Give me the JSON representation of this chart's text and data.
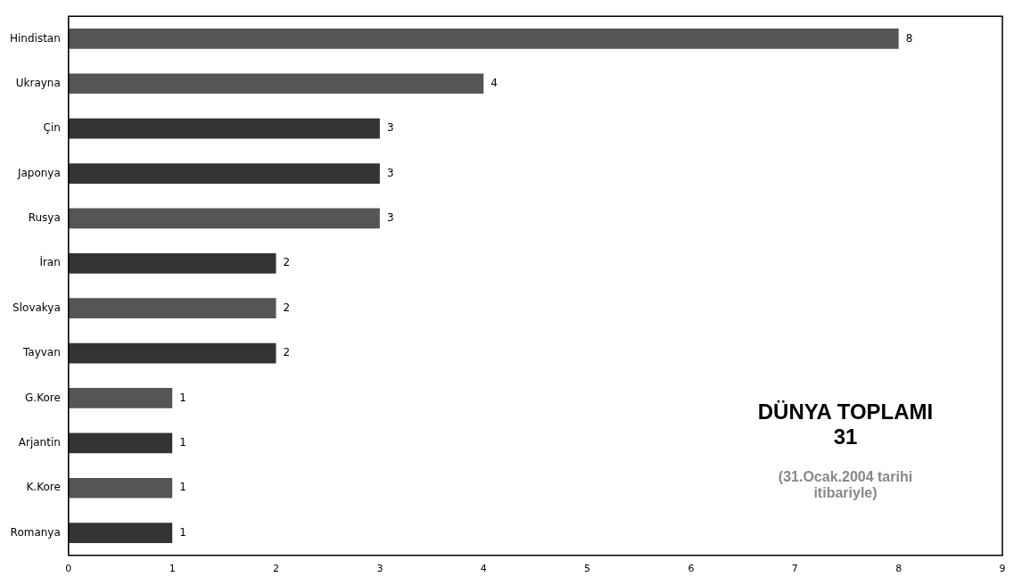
{
  "chart_data": {
    "type": "bar",
    "orientation": "horizontal",
    "categories": [
      "Hindistan",
      "Ukrayna",
      "Çin",
      "Japonya",
      "Rusya",
      "İran",
      "Slovakya",
      "Tayvan",
      "G.Kore",
      "Arjantin",
      "K.Kore",
      "Romanya"
    ],
    "values": [
      8,
      4,
      3,
      3,
      3,
      2,
      2,
      2,
      1,
      1,
      1,
      1
    ],
    "colors": [
      "#555555",
      "#555555",
      "#333333",
      "#333333",
      "#555555",
      "#333333",
      "#555555",
      "#333333",
      "#555555",
      "#333333",
      "#555555",
      "#333333"
    ],
    "xlim": [
      0,
      9
    ],
    "xticks": [
      0,
      1,
      2,
      3,
      4,
      5,
      6,
      7,
      8,
      9
    ],
    "grid": false,
    "legend": false,
    "data_labels": true,
    "annotations": [
      "DÜNYA TOPLAMI",
      "31",
      "(31.Ocak.2004 tarihi itibariyle)"
    ]
  }
}
